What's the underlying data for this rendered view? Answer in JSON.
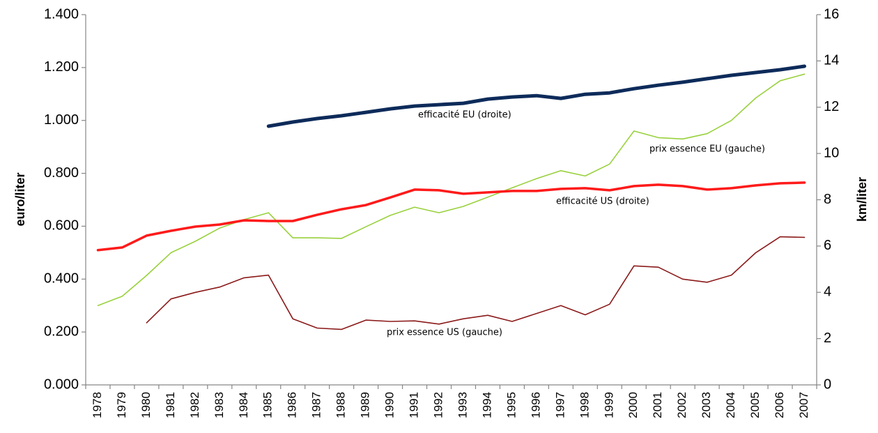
{
  "chart_data": {
    "type": "line",
    "categories": [
      "1978",
      "1979",
      "1980",
      "1981",
      "1982",
      "1983",
      "1984",
      "1985",
      "1986",
      "1987",
      "1988",
      "1989",
      "1990",
      "1991",
      "1992",
      "1993",
      "1994",
      "1995",
      "1996",
      "1997",
      "1998",
      "1999",
      "2000",
      "2001",
      "2002",
      "2003",
      "2004",
      "2005",
      "2006",
      "2007"
    ],
    "ylabel": "euro/liter",
    "y2label": "km/liter",
    "ylim": [
      0,
      1.4
    ],
    "yticks": [
      {
        "value": 0,
        "label": "0.000"
      },
      {
        "value": 0.2,
        "label": "0.200"
      },
      {
        "value": 0.4,
        "label": "0.400"
      },
      {
        "value": 0.6,
        "label": "0.600"
      },
      {
        "value": 0.8,
        "label": "0.800"
      },
      {
        "value": 1.0,
        "label": "1.000"
      },
      {
        "value": 1.2,
        "label": "1.200"
      },
      {
        "value": 1.4,
        "label": "1.400"
      }
    ],
    "y2lim": [
      0,
      16
    ],
    "y2ticks": [
      0,
      2,
      4,
      6,
      8,
      10,
      12,
      14,
      16
    ],
    "series": [
      {
        "name": "efficacité EU (droite)",
        "color": "#0d2b5a",
        "axis": "y2",
        "values": [
          null,
          null,
          null,
          null,
          null,
          null,
          null,
          11.18,
          11.36,
          11.51,
          11.63,
          11.78,
          11.93,
          12.05,
          12.11,
          12.17,
          12.35,
          12.44,
          12.5,
          12.38,
          12.56,
          12.62,
          12.8,
          12.95,
          13.08,
          13.23,
          13.38,
          13.5,
          13.62,
          13.77
        ]
      },
      {
        "name": "prix essence EU (gauche)",
        "color": "#99d13d",
        "values": [
          0.3,
          0.335,
          0.414,
          0.5,
          0.543,
          0.593,
          0.625,
          0.651,
          0.556,
          0.556,
          0.554,
          0.598,
          0.641,
          0.672,
          0.651,
          0.675,
          0.71,
          0.745,
          0.78,
          0.81,
          0.79,
          0.835,
          0.96,
          0.935,
          0.93,
          0.95,
          1.0,
          1.085,
          1.15,
          1.175
        ]
      },
      {
        "name": "efficacité US (droite)",
        "color": "#ff1a1a",
        "axis": "y2",
        "values": [
          5.82,
          5.94,
          6.45,
          6.66,
          6.84,
          6.93,
          7.11,
          7.08,
          7.08,
          7.35,
          7.59,
          7.77,
          8.1,
          8.44,
          8.41,
          8.26,
          8.32,
          8.38,
          8.38,
          8.47,
          8.5,
          8.41,
          8.59,
          8.65,
          8.59,
          8.44,
          8.5,
          8.62,
          8.71,
          8.74
        ]
      },
      {
        "name": "prix essence US (gauche)",
        "color": "#8b1a1a",
        "values": [
          null,
          null,
          0.235,
          0.325,
          0.35,
          0.37,
          0.405,
          0.415,
          0.25,
          0.215,
          0.21,
          0.245,
          0.24,
          0.242,
          0.23,
          0.25,
          0.263,
          0.24,
          0.27,
          0.3,
          0.265,
          0.305,
          0.45,
          0.445,
          0.4,
          0.388,
          0.415,
          0.5,
          0.56,
          0.558
        ]
      }
    ]
  }
}
